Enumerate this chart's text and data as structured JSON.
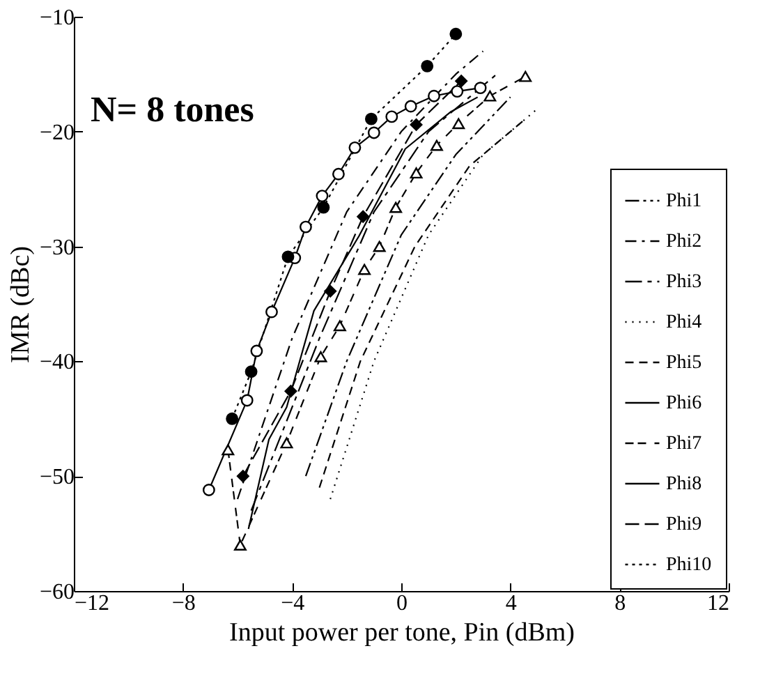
{
  "chart_data": {
    "type": "line",
    "title": "N= 8 tones",
    "xlabel": "Input power per tone, Pin (dBm)",
    "ylabel": "IMR (dBc)",
    "xlim": [
      -12,
      12
    ],
    "xticks": [
      -12,
      -8,
      -4,
      0,
      4,
      8,
      12
    ],
    "ylim": [
      -60,
      -10
    ],
    "yticks": [
      -60,
      -50,
      -40,
      -30,
      -20,
      -10
    ],
    "grid": false,
    "legend": "bottom right",
    "series": [
      {
        "name": "Phi1",
        "color": "#000000",
        "line_style": "dashed",
        "marker": "none",
        "x": [
          -3.5,
          -2,
          0,
          2,
          4
        ],
        "values": [
          -50,
          -40,
          -29,
          -22,
          -17
        ]
      },
      {
        "name": "Phi2",
        "color": "#000000",
        "line_style": "dashed",
        "marker": "none",
        "x": [
          -6,
          -4,
          -2,
          0,
          2,
          3
        ],
        "values": [
          -52,
          -38,
          -27,
          -20,
          -15,
          -13
        ]
      },
      {
        "name": "Phi3",
        "color": "#000000",
        "line_style": "dashed",
        "marker": "none",
        "x": [
          -5.5,
          -3,
          -1,
          1,
          3.5
        ],
        "values": [
          -53,
          -38,
          -27,
          -20,
          -15
        ]
      },
      {
        "name": "Phi4",
        "color": "#000000",
        "line_style": "dotted",
        "marker": "none",
        "x": [
          -2.6,
          -1,
          1,
          3,
          5
        ],
        "values": [
          -52,
          -40,
          -29,
          -22,
          -18
        ]
      },
      {
        "name": "Phi5",
        "color": "#000000",
        "line_style": "dashed",
        "marker": "none",
        "x": [
          -3,
          -1.5,
          0.5,
          2.5,
          4.5
        ],
        "values": [
          -51,
          -40,
          -30,
          -23,
          -19
        ]
      },
      {
        "name": "Phi6",
        "color": "#000000",
        "line_style": "solid",
        "marker": "none",
        "x": [
          -5.6,
          -4.85,
          -4.2,
          -3.2,
          -1.55,
          0.15,
          1.8,
          2.8
        ],
        "values": [
          -54.6,
          -46.8,
          -44,
          -35.6,
          -29.1,
          -21.5,
          -18.3,
          -17
        ]
      },
      {
        "name": "Phi7",
        "color": "#000000",
        "line_style": "dashed",
        "marker": "triangle",
        "x": [
          -6.35,
          -5.9,
          -4.2,
          -2.95,
          -2.25,
          -1.35,
          -0.8,
          -0.2,
          0.55,
          1.3,
          2.1,
          3.25,
          4.55
        ],
        "values": [
          -47.7,
          -56,
          -47.1,
          -39.6,
          -36.9,
          -32,
          -30,
          -26.6,
          -23.6,
          -21.2,
          -19.3,
          -16.9,
          -15.2
        ]
      },
      {
        "name": "Phi8",
        "color": "#000000",
        "line_style": "solid",
        "marker": "circle",
        "x": [
          -7.05,
          -5.65,
          -5.3,
          -4.75,
          -3.9,
          -3.5,
          -2.9,
          -2.3,
          -1.7,
          -1,
          -0.35,
          0.35,
          1.2,
          2.05,
          2.9
        ],
        "values": [
          -51.2,
          -43.4,
          -39.1,
          -35.7,
          -31,
          -28.3,
          -25.6,
          -23.7,
          -21.4,
          -20.1,
          -18.7,
          -17.8,
          -16.9,
          -16.5,
          -16.2
        ]
      },
      {
        "name": "Phi9",
        "color": "#000000",
        "line_style": "dashed",
        "marker": "diamond",
        "x": [
          -5.8,
          -4.05,
          -2.6,
          -1.4,
          0.55,
          2.2
        ],
        "values": [
          -50,
          -42.6,
          -33.9,
          -27.4,
          -19.4,
          -15.6
        ]
      },
      {
        "name": "Phi10",
        "color": "#000000",
        "line_style": "dotted",
        "marker": "circle",
        "x": [
          -6.2,
          -5.5,
          -4.15,
          -2.85,
          -1.1,
          0.95,
          2
        ],
        "values": [
          -45,
          -40.9,
          -30.9,
          -26.6,
          -18.9,
          -14.3,
          -11.5
        ]
      }
    ]
  }
}
